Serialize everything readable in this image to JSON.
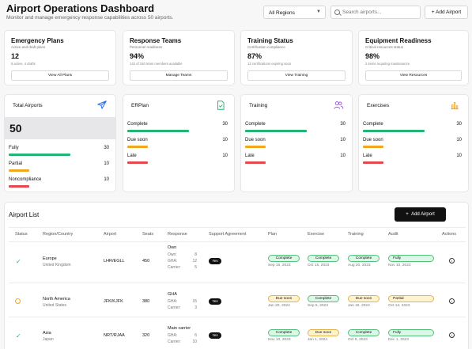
{
  "header": {
    "title": "Airport Operations Dashboard",
    "subtitle": "Monitor and manage emergency response capabilities across 50 airports.",
    "region_select": "All Regions",
    "search_placeholder": "Search airports...",
    "add_button": "Add Airport"
  },
  "summary_cards": [
    {
      "title": "Emergency Plans",
      "desc": "Active and draft plans",
      "value": "12",
      "small": "8 active, 4 drafts",
      "button": "View All Plans"
    },
    {
      "title": "Response Teams",
      "desc": "Personnel readiness",
      "value": "94%",
      "small": "142 of 150 team members available",
      "button": "Manage Teams"
    },
    {
      "title": "Training Status",
      "desc": "Certification compliance",
      "value": "87%",
      "small": "12 certifications expiring soon",
      "button": "View Training"
    },
    {
      "title": "Equipment Readiness",
      "desc": "Critical resources status",
      "value": "98%",
      "small": "2 items requiring maintenance",
      "button": "View Resources"
    }
  ],
  "total_airports": {
    "label": "Total Airports",
    "value": "50",
    "rows": [
      {
        "label": "Fully",
        "value": "30",
        "fraction": 0.6,
        "color": "#22b573"
      },
      {
        "label": "Partial",
        "value": "10",
        "fraction": 0.2,
        "color": "#f2a81d"
      },
      {
        "label": "Noncompliance",
        "value": "10",
        "fraction": 0.2,
        "color": "#e5484d"
      }
    ]
  },
  "stat_cards": [
    {
      "label": "ERPlan",
      "rows": [
        {
          "label": "Complete",
          "value": "30",
          "fraction": 0.6,
          "color": "#22b573"
        },
        {
          "label": "Due soon",
          "value": "10",
          "fraction": 0.2,
          "color": "#f2a81d"
        },
        {
          "label": "Late",
          "value": "10",
          "fraction": 0.2,
          "color": "#e5484d"
        }
      ]
    },
    {
      "label": "Training",
      "rows": [
        {
          "label": "Complete",
          "value": "30",
          "fraction": 0.6,
          "color": "#22b573"
        },
        {
          "label": "Due soon",
          "value": "10",
          "fraction": 0.2,
          "color": "#f2a81d"
        },
        {
          "label": "Late",
          "value": "10",
          "fraction": 0.2,
          "color": "#e5484d"
        }
      ]
    },
    {
      "label": "Exercises",
      "rows": [
        {
          "label": "Complete",
          "value": "30",
          "fraction": 0.6,
          "color": "#22b573"
        },
        {
          "label": "Due soon",
          "value": "10",
          "fraction": 0.2,
          "color": "#f2a81d"
        },
        {
          "label": "Late",
          "value": "10",
          "fraction": 0.2,
          "color": "#e5484d"
        }
      ]
    }
  ],
  "airport_list": {
    "title": "Airport List",
    "add_button": "Add Airport",
    "columns": [
      "Status",
      "Region/Country",
      "Airport",
      "Seats",
      "Response",
      "Support Agreement",
      "Plan",
      "Exercise",
      "Training",
      "Audit",
      "Actions"
    ],
    "rows": [
      {
        "status": "ok",
        "region": "Europe",
        "country": "United Kingdom",
        "airport": "LHR/EGLL",
        "seats": "450",
        "response": {
          "title": "Own",
          "lines": [
            {
              "k": "Own:",
              "v": "8"
            },
            {
              "k": "GHA:",
              "v": "12"
            },
            {
              "k": "Carrier:",
              "v": "5"
            }
          ]
        },
        "support": "Yes",
        "plan": {
          "status": "Complete",
          "date": "Sep 15, 2023"
        },
        "exercise": {
          "status": "Complete",
          "date": "Oct 15, 2023"
        },
        "training": {
          "status": "Complete",
          "date": "Aug 20, 2023"
        },
        "audit": {
          "status": "Fully",
          "date": "Nov 10, 2023"
        }
      },
      {
        "status": "warn",
        "region": "North America",
        "country": "United States",
        "airport": "JFK/KJFK",
        "seats": "380",
        "response": {
          "title": "GHA",
          "lines": [
            {
              "k": "GHA:",
              "v": "15"
            },
            {
              "k": "Carrier:",
              "v": "3"
            }
          ]
        },
        "support": "Yes",
        "plan": {
          "status": "Due soon",
          "date": "Jan 20, 2024"
        },
        "exercise": {
          "status": "Complete",
          "date": "Sep 5, 2023"
        },
        "training": {
          "status": "Due soon",
          "date": "Jan 15, 2024"
        },
        "audit": {
          "status": "Partial",
          "date": "Oct 12, 2023"
        }
      },
      {
        "status": "ok",
        "region": "Asia",
        "country": "Japan",
        "airport": "NRT/RJAA",
        "seats": "320",
        "response": {
          "title": "Main carrier",
          "lines": [
            {
              "k": "GHA:",
              "v": "6"
            },
            {
              "k": "Carrier:",
              "v": "10"
            }
          ]
        },
        "support": "Yes",
        "plan": {
          "status": "Complete",
          "date": "Nov 10, 2023"
        },
        "exercise": {
          "status": "Due soon",
          "date": "Jan 1, 2024"
        },
        "training": {
          "status": "Complete",
          "date": "Oct 5, 2023"
        },
        "audit": {
          "status": "Fully",
          "date": "Dec 1, 2023"
        }
      }
    ]
  }
}
